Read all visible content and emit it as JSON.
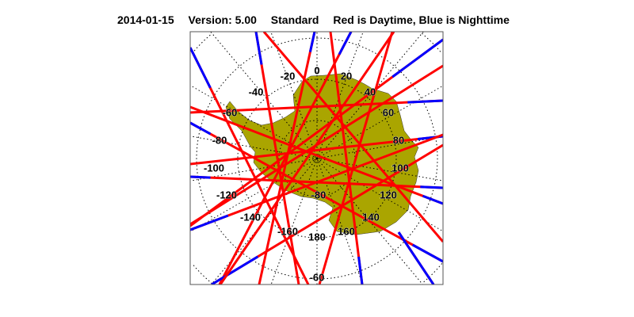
{
  "title": {
    "date": "2014-01-15",
    "version": "Version: 5.00",
    "mode": "Standard",
    "legend": "Red is Daytime, Blue is Nighttime"
  },
  "map": {
    "projection": "south polar stereographic",
    "region": "Antarctica",
    "longitude_labels": [
      "0",
      "20",
      "40",
      "60",
      "80",
      "100",
      "120",
      "140",
      "160",
      "180",
      "-160",
      "-140",
      "-120",
      "-100",
      "-80",
      "-60",
      "-40",
      "-20"
    ],
    "latitude_labels": [
      "-80",
      "-60"
    ],
    "colors": {
      "day": "#ff0000",
      "night": "#0000ff",
      "land": "#aaa500",
      "grid": "#000000"
    }
  }
}
